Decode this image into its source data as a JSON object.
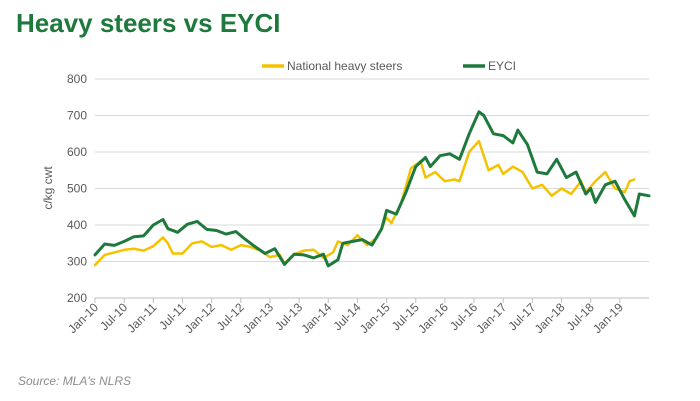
{
  "title": "Heavy steers vs EYCI",
  "source": "Source: MLA's NLRS",
  "chart_data": {
    "type": "line",
    "title": "Heavy steers vs EYCI",
    "xlabel": "",
    "ylabel": "c/kg cwt",
    "ylim": [
      200,
      800
    ],
    "yticks": [
      200,
      300,
      400,
      500,
      600,
      700,
      800
    ],
    "xlim": [
      "Jan-10",
      "Jul-19"
    ],
    "xticks": [
      "Jan-10",
      "Jul-10",
      "Jan-11",
      "Jul-11",
      "Jan-12",
      "Jul-12",
      "Jan-13",
      "Jul-13",
      "Jan-14",
      "Jul-14",
      "Jan-15",
      "Jul-15",
      "Jan-16",
      "Jul-16",
      "Jan-17",
      "Jul-17",
      "Jan-18",
      "Jul-18",
      "Jan-19"
    ],
    "legend_position": "top-center",
    "grid": true,
    "series": [
      {
        "name": "National heavy steers",
        "color": "#f5c200",
        "points": [
          [
            "Jan-10",
            290
          ],
          [
            "Mar-10",
            318
          ],
          [
            "May-10",
            325
          ],
          [
            "Jul-10",
            332
          ],
          [
            "Sep-10",
            335
          ],
          [
            "Nov-10",
            330
          ],
          [
            "Jan-11",
            342
          ],
          [
            "Mar-11",
            366
          ],
          [
            "Apr-11",
            350
          ],
          [
            "May-11",
            322
          ],
          [
            "Jul-11",
            322
          ],
          [
            "Sep-11",
            350
          ],
          [
            "Nov-11",
            355
          ],
          [
            "Jan-12",
            340
          ],
          [
            "Mar-12",
            345
          ],
          [
            "May-12",
            332
          ],
          [
            "Jul-12",
            345
          ],
          [
            "Sep-12",
            340
          ],
          [
            "Nov-12",
            330
          ],
          [
            "Jan-13",
            312
          ],
          [
            "Mar-13",
            318
          ],
          [
            "Apr-13",
            295
          ],
          [
            "Jun-13",
            320
          ],
          [
            "Aug-13",
            330
          ],
          [
            "Oct-13",
            332
          ],
          [
            "Dec-13",
            310
          ],
          [
            "Feb-14",
            325
          ],
          [
            "Mar-14",
            355
          ],
          [
            "May-14",
            345
          ],
          [
            "Jul-14",
            372
          ],
          [
            "Sep-14",
            345
          ],
          [
            "Nov-14",
            365
          ],
          [
            "Jan-15",
            420
          ],
          [
            "Feb-15",
            405
          ],
          [
            "Apr-15",
            460
          ],
          [
            "Jun-15",
            555
          ],
          [
            "Aug-15",
            575
          ],
          [
            "Sep-15",
            530
          ],
          [
            "Nov-15",
            545
          ],
          [
            "Jan-16",
            520
          ],
          [
            "Mar-16",
            525
          ],
          [
            "Apr-16",
            520
          ],
          [
            "Jun-16",
            600
          ],
          [
            "Aug-16",
            630
          ],
          [
            "Oct-16",
            550
          ],
          [
            "Dec-16",
            565
          ],
          [
            "Jan-17",
            540
          ],
          [
            "Mar-17",
            560
          ],
          [
            "May-17",
            545
          ],
          [
            "Jul-17",
            500
          ],
          [
            "Sep-17",
            510
          ],
          [
            "Nov-17",
            480
          ],
          [
            "Jan-18",
            500
          ],
          [
            "Mar-18",
            485
          ],
          [
            "May-18",
            520
          ],
          [
            "Jun-18",
            490
          ],
          [
            "Aug-18",
            520
          ],
          [
            "Oct-18",
            545
          ],
          [
            "Dec-18",
            500
          ],
          [
            "Feb-19",
            490
          ],
          [
            "Mar-19",
            520
          ],
          [
            "Apr-19",
            525
          ]
        ]
      },
      {
        "name": "EYCI",
        "color": "#1e7a3c",
        "points": [
          [
            "Jan-10",
            318
          ],
          [
            "Mar-10",
            348
          ],
          [
            "May-10",
            344
          ],
          [
            "Jul-10",
            355
          ],
          [
            "Sep-10",
            368
          ],
          [
            "Nov-10",
            370
          ],
          [
            "Jan-11",
            400
          ],
          [
            "Mar-11",
            415
          ],
          [
            "Apr-11",
            390
          ],
          [
            "Jun-11",
            380
          ],
          [
            "Aug-11",
            402
          ],
          [
            "Oct-11",
            410
          ],
          [
            "Dec-11",
            388
          ],
          [
            "Feb-12",
            385
          ],
          [
            "Apr-12",
            375
          ],
          [
            "Jun-12",
            382
          ],
          [
            "Aug-12",
            360
          ],
          [
            "Oct-12",
            340
          ],
          [
            "Dec-12",
            322
          ],
          [
            "Feb-13",
            335
          ],
          [
            "Apr-13",
            292
          ],
          [
            "Jun-13",
            320
          ],
          [
            "Aug-13",
            318
          ],
          [
            "Oct-13",
            310
          ],
          [
            "Dec-13",
            320
          ],
          [
            "Jan-14",
            288
          ],
          [
            "Mar-14",
            305
          ],
          [
            "Apr-14",
            350
          ],
          [
            "Jun-14",
            355
          ],
          [
            "Aug-14",
            360
          ],
          [
            "Oct-14",
            345
          ],
          [
            "Dec-14",
            390
          ],
          [
            "Jan-15",
            440
          ],
          [
            "Mar-15",
            430
          ],
          [
            "May-15",
            490
          ],
          [
            "Jul-15",
            560
          ],
          [
            "Sep-15",
            585
          ],
          [
            "Oct-15",
            560
          ],
          [
            "Dec-15",
            590
          ],
          [
            "Feb-16",
            595
          ],
          [
            "Apr-16",
            580
          ],
          [
            "Jun-16",
            650
          ],
          [
            "Aug-16",
            710
          ],
          [
            "Sep-16",
            700
          ],
          [
            "Nov-16",
            650
          ],
          [
            "Jan-17",
            645
          ],
          [
            "Mar-17",
            625
          ],
          [
            "Apr-17",
            660
          ],
          [
            "Jun-17",
            620
          ],
          [
            "Aug-17",
            545
          ],
          [
            "Oct-17",
            540
          ],
          [
            "Dec-17",
            580
          ],
          [
            "Feb-18",
            530
          ],
          [
            "Apr-18",
            545
          ],
          [
            "Jun-18",
            485
          ],
          [
            "Jul-18",
            500
          ],
          [
            "Aug-18",
            462
          ],
          [
            "Oct-18",
            510
          ],
          [
            "Dec-18",
            520
          ],
          [
            "Feb-19",
            470
          ],
          [
            "Apr-19",
            425
          ],
          [
            "May-19",
            485
          ],
          [
            "Jul-19",
            480
          ]
        ]
      }
    ]
  }
}
